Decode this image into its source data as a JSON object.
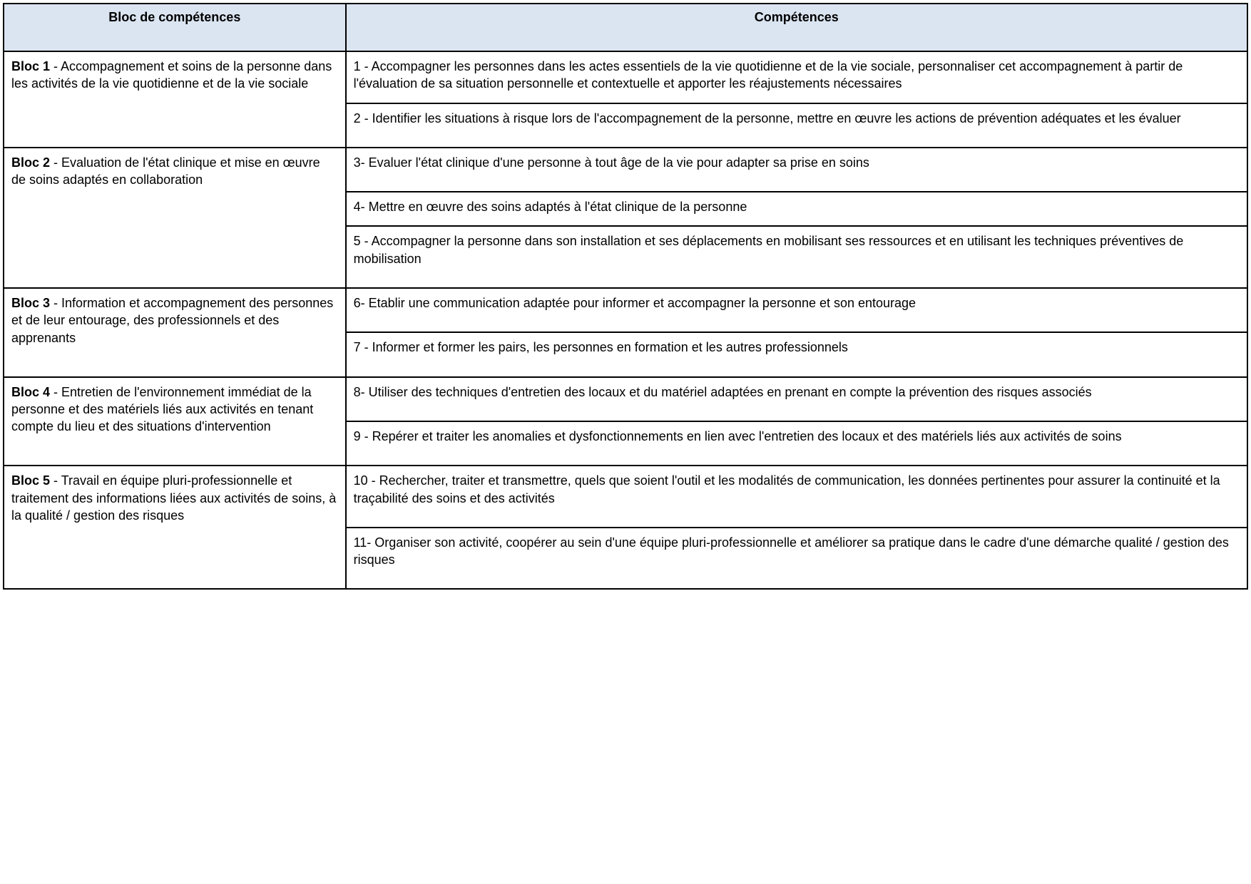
{
  "table": {
    "header": {
      "bloc": "Bloc de compétences",
      "comp": "Compétences"
    },
    "rows": [
      {
        "bloc_label": "Bloc 1",
        "bloc_text": " - Accompagnement et soins de la personne dans les activités de la vie quotidienne et de la vie sociale",
        "competences": [
          "1 - Accompagner les personnes dans les actes essentiels de la vie quotidienne et de la vie sociale, personnaliser cet accompagnement à partir de l'évaluation de sa situation personnelle et contextuelle et apporter les réajustements nécessaires",
          "2 - Identifier les situations à risque lors de l'accompagnement de la personne, mettre en œuvre les actions de prévention adéquates et les évaluer"
        ]
      },
      {
        "bloc_label": "Bloc 2",
        "bloc_text": " - Evaluation de l'état clinique et mise en œuvre de soins adaptés en collaboration",
        "competences": [
          "3- Evaluer l'état clinique d'une personne à tout âge de la vie pour adapter sa prise en soins",
          "4- Mettre en œuvre des soins adaptés à l'état clinique de la personne",
          "5 - Accompagner la personne dans son installation et ses déplacements en mobilisant ses ressources et en utilisant les techniques préventives de mobilisation"
        ]
      },
      {
        "bloc_label": "Bloc 3",
        "bloc_text": " - Information et accompagnement des\npersonnes et de leur entourage, des professionnels et des apprenants",
        "competences": [
          "6- Etablir une communication adaptée pour informer et accompagner la personne et son entourage",
          "7 - Informer et former les pairs, les personnes en formation et les autres professionnels"
        ]
      },
      {
        "bloc_label": "Bloc 4",
        "bloc_text": " - Entretien de\nl'environnement immédiat de la personne et des matériels liés aux activités en tenant compte du lieu et des situations d'intervention",
        "competences": [
          "8- Utiliser des techniques d'entretien des locaux et du matériel adaptées en prenant en compte la prévention des risques associés",
          "9 - Repérer et traiter les anomalies et dysfonctionnements en lien avec l'entretien des locaux et des matériels liés aux activités de soins"
        ]
      },
      {
        "bloc_label": "Bloc 5",
        "bloc_text": " - Travail en équipe pluri-professionnelle et traitement des informations liées aux activités de soins, à la qualité /\ngestion des risques",
        "competences": [
          "10 - Rechercher, traiter et transmettre, quels que soient l'outil et les modalités de communication, les données pertinentes pour assurer la continuité et la traçabilité des soins et des activités",
          "11- Organiser son activité, coopérer au sein d'une équipe pluri-professionnelle et améliorer sa pratique dans le cadre d'une démarche qualité / gestion des risques"
        ]
      }
    ]
  }
}
